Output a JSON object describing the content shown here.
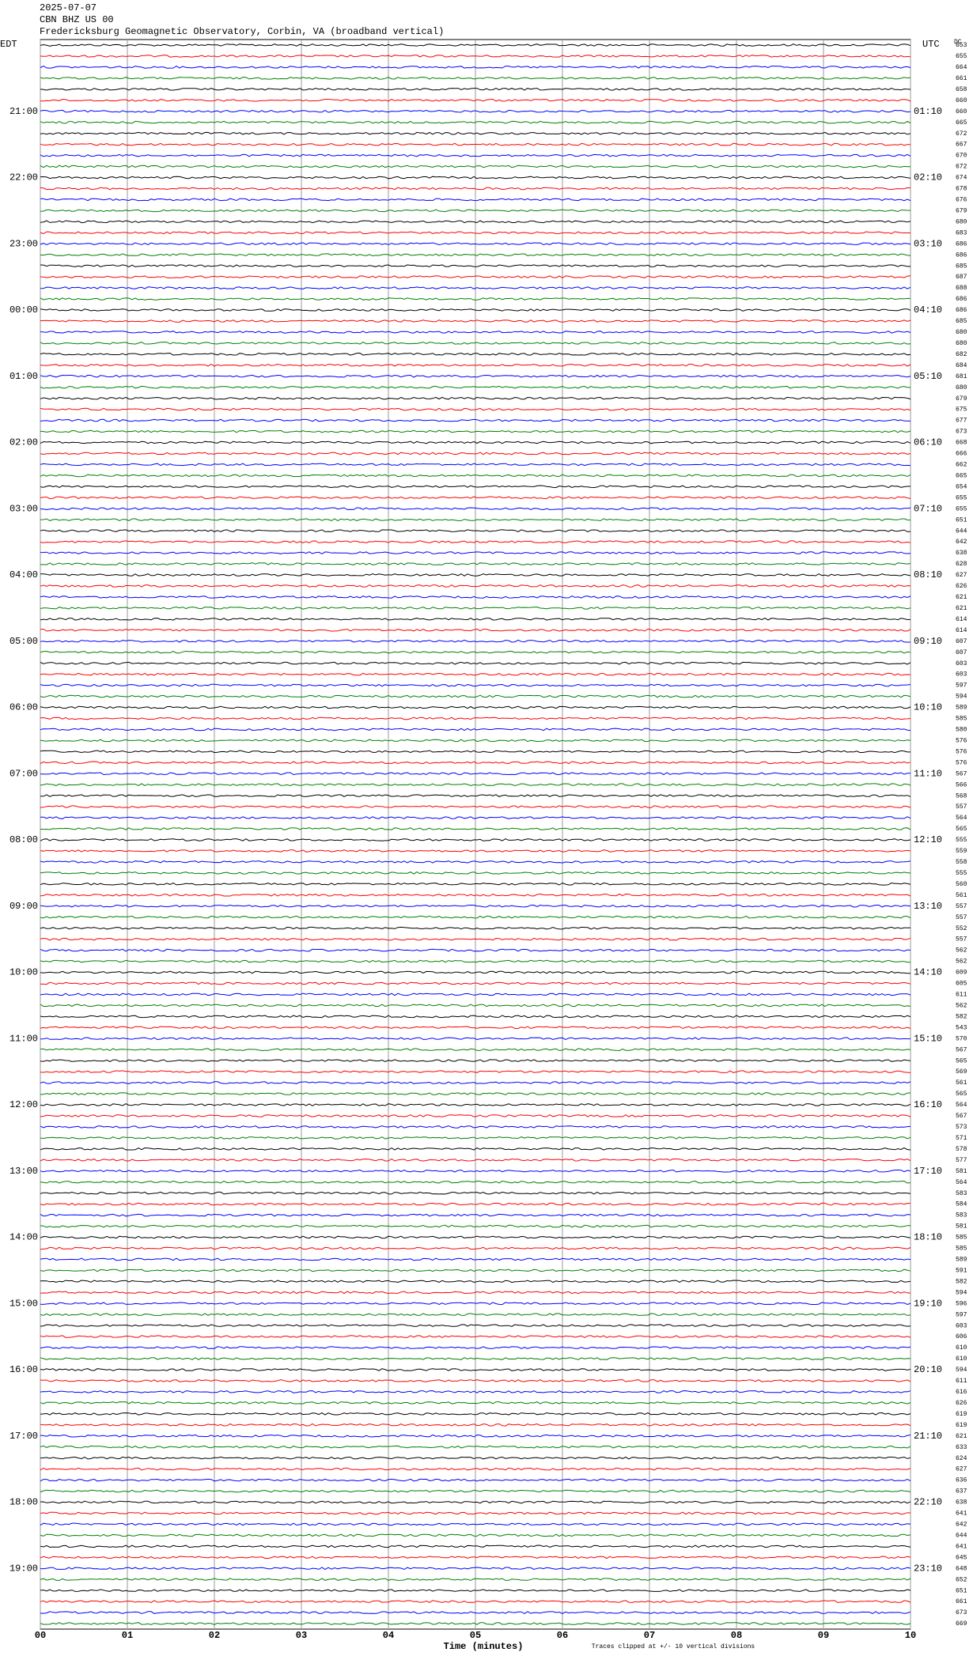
{
  "chart_data": {
    "type": "helicorder",
    "date": "2025-07-07",
    "station": "CBN BHZ US 00",
    "title": "Fredericksburg Geomagnetic Observatory, Corbin, VA (broadband vertical)",
    "left_zone": "EDT",
    "right_zone": "UTC",
    "dc_label": "DC",
    "edt_hours": [
      null,
      "21:00",
      "22:00",
      "23:00",
      "00:00",
      "01:00",
      "02:00",
      "03:00",
      "04:00",
      "05:00",
      "06:00",
      "07:00",
      "08:00",
      "09:00",
      "10:00",
      "11:00",
      "12:00",
      "13:00",
      "14:00",
      "15:00",
      "16:00",
      "17:00",
      "18:00",
      "19:00"
    ],
    "utc_hours": [
      null,
      "01:10",
      "02:10",
      "03:10",
      "04:10",
      "05:10",
      "06:10",
      "07:10",
      "08:10",
      "09:10",
      "10:10",
      "11:10",
      "12:10",
      "13:10",
      "14:10",
      "15:10",
      "16:10",
      "17:10",
      "18:10",
      "19:10",
      "20:10",
      "21:10",
      "22:10",
      "23:10"
    ],
    "dc_values": [
      653,
      655,
      664,
      661,
      658,
      660,
      660,
      665,
      672,
      667,
      670,
      672,
      674,
      678,
      676,
      679,
      680,
      683,
      686,
      686,
      685,
      687,
      688,
      686,
      686,
      685,
      680,
      680,
      682,
      684,
      681,
      680,
      679,
      675,
      677,
      673,
      668,
      666,
      662,
      665,
      654,
      655,
      655,
      651,
      644,
      642,
      638,
      628,
      627,
      626,
      621,
      621,
      614,
      614,
      607,
      607,
      603,
      603,
      597,
      594,
      589,
      585,
      580,
      576,
      576,
      576,
      567,
      566,
      568,
      557,
      564,
      565,
      555,
      559,
      558,
      555,
      560,
      561,
      557,
      557,
      552,
      557,
      562,
      562,
      609,
      605,
      611,
      562,
      582,
      543,
      570,
      567,
      565,
      569,
      561,
      565,
      564,
      567,
      573,
      571,
      578,
      577,
      581,
      564,
      583,
      584,
      583,
      581,
      585,
      585,
      589,
      591,
      582,
      594,
      596,
      597,
      603,
      606,
      610,
      610,
      594,
      611,
      616,
      626,
      619,
      619,
      621,
      633,
      624,
      627,
      636,
      637,
      638,
      641,
      642,
      644,
      641,
      645,
      648,
      652,
      651,
      661,
      673,
      669
    ],
    "trace_colors": [
      "#000000",
      "#ff0000",
      "#0000ff",
      "#008000"
    ],
    "xlim": [
      0,
      10
    ],
    "xticks": [
      {
        "value": 0,
        "label": "00"
      },
      {
        "value": 1,
        "label": "01"
      },
      {
        "value": 2,
        "label": "02"
      },
      {
        "value": 3,
        "label": "03"
      },
      {
        "value": 4,
        "label": "04"
      },
      {
        "value": 5,
        "label": "05"
      },
      {
        "value": 6,
        "label": "06"
      },
      {
        "value": 7,
        "label": "07"
      },
      {
        "value": 8,
        "label": "08"
      },
      {
        "value": 9,
        "label": "09"
      },
      {
        "value": 10,
        "label": "10"
      }
    ],
    "xlabel": "Time (minutes)",
    "note": "Traces clipped at +/- 10 vertical divisions"
  }
}
